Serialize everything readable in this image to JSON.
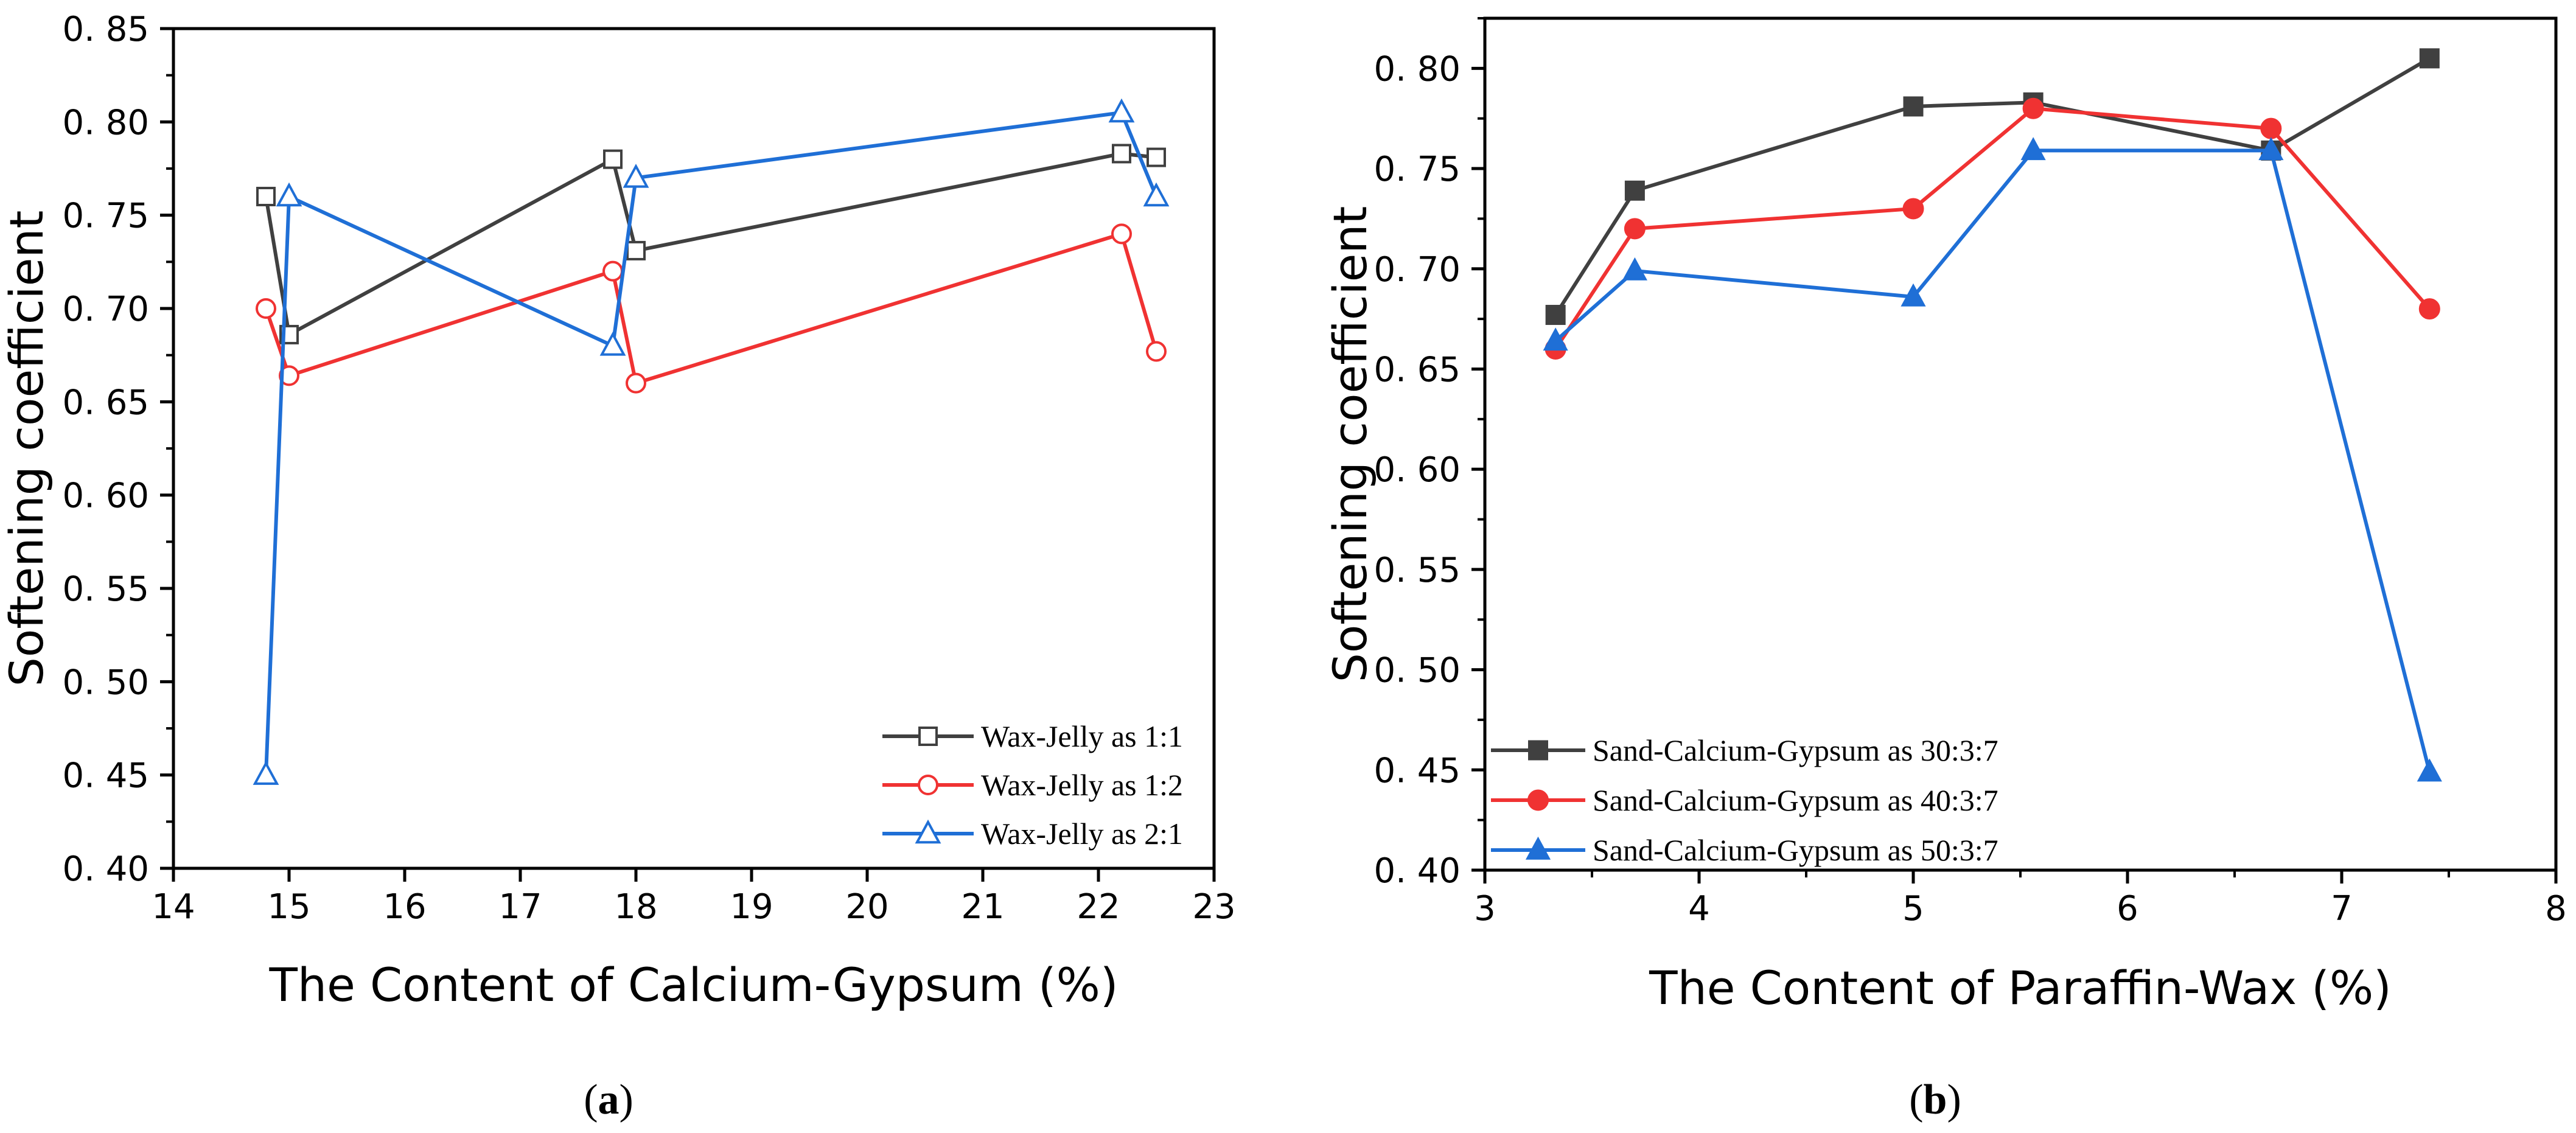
{
  "chart_data": [
    {
      "id": "a",
      "type": "line",
      "caption_open": "(",
      "caption_letter": "a",
      "caption_close": ")",
      "xlabel": "The Content of Calcium-Gypsum (%)",
      "ylabel": "Softening coefficient",
      "xlim": [
        14,
        23
      ],
      "ylim": [
        0.4,
        0.85
      ],
      "xticks": [
        "14",
        "15",
        "16",
        "17",
        "18",
        "19",
        "20",
        "21",
        "22",
        "23"
      ],
      "yticks": [
        "0. 40",
        "0. 45",
        "0. 50",
        "0. 55",
        "0. 60",
        "0. 65",
        "0. 70",
        "0. 75",
        "0. 80",
        "0. 85"
      ],
      "legend_position": "bottom-right",
      "series": [
        {
          "name": "Wax-Jelly as 1:1",
          "color": "#404040",
          "marker": "square-open",
          "x": [
            14.8,
            15.0,
            17.8,
            18.0,
            22.2,
            22.5
          ],
          "y": [
            0.76,
            0.686,
            0.78,
            0.731,
            0.783,
            0.781
          ]
        },
        {
          "name": "Wax-Jelly as 1:2",
          "color": "#f03232",
          "marker": "circle-open",
          "x": [
            14.8,
            15.0,
            17.8,
            18.0,
            22.2,
            22.5
          ],
          "y": [
            0.7,
            0.664,
            0.72,
            0.66,
            0.74,
            0.677
          ]
        },
        {
          "name": "Wax-Jelly as 2:1",
          "color": "#1f6fd6",
          "marker": "triangle-open",
          "x": [
            14.8,
            15.0,
            17.8,
            18.0,
            22.2,
            22.5
          ],
          "y": [
            0.45,
            0.76,
            0.68,
            0.77,
            0.805,
            0.76
          ]
        }
      ]
    },
    {
      "id": "b",
      "type": "line",
      "caption_open": "(",
      "caption_letter": "b",
      "caption_close": ")",
      "xlabel": "The Content of Paraffin-Wax (%)",
      "ylabel": "Softening coefficient",
      "xlim": [
        3,
        8
      ],
      "ylim": [
        0.4,
        0.825
      ],
      "xticks": [
        "3",
        "4",
        "5",
        "6",
        "7",
        "8"
      ],
      "yticks": [
        "0. 40",
        "0. 45",
        "0. 50",
        "0. 55",
        "0. 60",
        "0. 65",
        "0. 70",
        "0. 75",
        "0. 80"
      ],
      "legend_position": "bottom-left",
      "series": [
        {
          "name": "Sand-Calcium-Gypsum as 30:3:7",
          "color": "#404040",
          "marker": "square-filled",
          "x": [
            3.33,
            3.7,
            5.0,
            5.56,
            6.67,
            7.41
          ],
          "y": [
            0.677,
            0.739,
            0.781,
            0.783,
            0.759,
            0.805
          ]
        },
        {
          "name": "Sand-Calcium-Gypsum as 40:3:7",
          "color": "#f03232",
          "marker": "circle-filled",
          "x": [
            3.33,
            3.7,
            5.0,
            5.56,
            6.67,
            7.41
          ],
          "y": [
            0.66,
            0.72,
            0.73,
            0.78,
            0.77,
            0.68
          ]
        },
        {
          "name": "Sand-Calcium-Gypsum as 50:3:7",
          "color": "#1f6fd6",
          "marker": "triangle-filled",
          "x": [
            3.33,
            3.7,
            5.0,
            5.56,
            6.67,
            7.41
          ],
          "y": [
            0.664,
            0.699,
            0.686,
            0.759,
            0.759,
            0.449
          ]
        }
      ]
    }
  ]
}
